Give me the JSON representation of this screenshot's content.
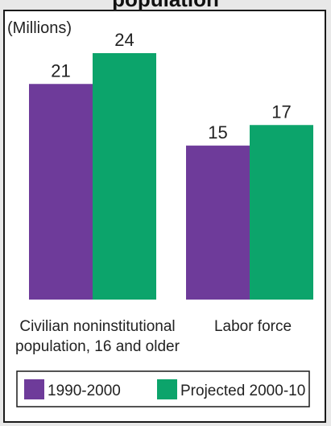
{
  "title_partial": "population",
  "chart_data": {
    "type": "bar",
    "unit_label": "(Millions)",
    "categories": [
      "Civilian noninstitutional\npopulation, 16 and older",
      "Labor force"
    ],
    "series": [
      {
        "name": "1990-2000",
        "color": "#6e3b9a",
        "values": [
          21,
          15
        ]
      },
      {
        "name": "Projected 2000-10",
        "color": "#0ca46b",
        "values": [
          24,
          17
        ]
      }
    ],
    "ylim": [
      0,
      25
    ],
    "grid": false,
    "legend_position": "bottom"
  }
}
